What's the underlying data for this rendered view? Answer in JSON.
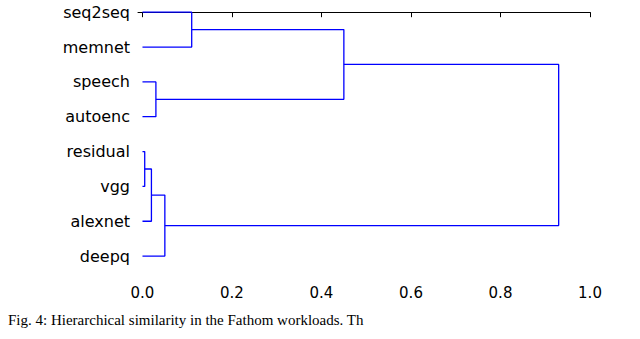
{
  "chart_data": {
    "type": "dendrogram",
    "caption": "Fig. 4: Hierarchical similarity in the Fathom workloads. Th",
    "orientation": "horizontal",
    "color": "#0000ff",
    "grid": false,
    "xlim": [
      -0.01,
      1.0
    ],
    "xticks": [
      {
        "value": 0,
        "label": "0.0"
      },
      {
        "value": 0.2,
        "label": "0.2"
      },
      {
        "value": 0.4,
        "label": "0.4"
      },
      {
        "value": 0.6,
        "label": "0.6"
      },
      {
        "value": 0.8,
        "label": "0.8"
      },
      {
        "value": 1.0,
        "label": "1.0"
      }
    ],
    "tree": {
      "height": 0.93,
      "children": [
        {
          "height": 0.45,
          "children": [
            {
              "height": 0.11,
              "children": [
                "seq2seq",
                "memnet"
              ]
            },
            {
              "height": 0.03,
              "children": [
                "speech",
                "autoenc"
              ]
            }
          ]
        },
        {
          "height": 0.05,
          "children": [
            {
              "height": 0.02,
              "children": [
                {
                  "height": 0.005,
                  "children": [
                    "residual",
                    "vgg"
                  ]
                },
                "alexnet"
              ]
            },
            "deepq"
          ]
        }
      ]
    }
  }
}
